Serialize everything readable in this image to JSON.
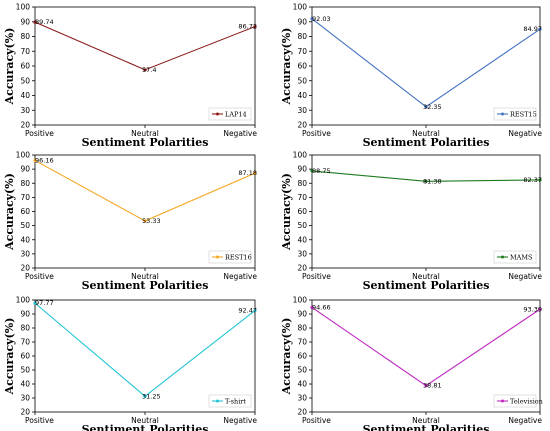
{
  "chart_data": [
    {
      "type": "line",
      "categories": [
        "Positive",
        "Neutral",
        "Negative"
      ],
      "series": [
        {
          "name": "LAP14",
          "values": [
            89.74,
            57.4,
            86.72
          ],
          "labels": [
            "89.74",
            "57.4",
            "86.72"
          ],
          "color": "#8b1a1a"
        }
      ],
      "xlabel": "Sentiment Polarities",
      "ylabel": "Accuracy(%)",
      "ylim": [
        20,
        100
      ],
      "yticks": [
        "20",
        "30",
        "40",
        "50",
        "60",
        "70",
        "80",
        "90",
        "100"
      ],
      "legend_position": "lower-right",
      "grid": false
    },
    {
      "type": "line",
      "categories": [
        "Positive",
        "Neutral",
        "Negative"
      ],
      "series": [
        {
          "name": "REST15",
          "values": [
            92.03,
            32.35,
            84.97
          ],
          "labels": [
            "92.03",
            "32.35",
            "84.97"
          ],
          "color": "#4472c4"
        }
      ],
      "xlabel": "Sentiment Polarities",
      "ylabel": "Accuracy(%)",
      "ylim": [
        20,
        100
      ],
      "yticks": [
        "20",
        "30",
        "40",
        "50",
        "60",
        "70",
        "80",
        "90",
        "100"
      ],
      "legend_position": "lower-right",
      "grid": false
    },
    {
      "type": "line",
      "categories": [
        "Positive",
        "Neutral",
        "Negative"
      ],
      "series": [
        {
          "name": "REST16",
          "values": [
            96.16,
            53.33,
            87.18
          ],
          "labels": [
            "96.16",
            "53.33",
            "87.18"
          ],
          "color": "#f5a623"
        }
      ],
      "xlabel": "Sentiment Polarities",
      "ylabel": "Accuracy(%)",
      "ylim": [
        20,
        100
      ],
      "yticks": [
        "20",
        "30",
        "40",
        "50",
        "60",
        "70",
        "80",
        "90",
        "100"
      ],
      "legend_position": "lower-right",
      "grid": false
    },
    {
      "type": "line",
      "categories": [
        "Positive",
        "Neutral",
        "Negative"
      ],
      "series": [
        {
          "name": "MAMS",
          "values": [
            88.75,
            81.38,
            82.37
          ],
          "labels": [
            "88.75",
            "81.38",
            "82.37"
          ],
          "color": "#1e7b1e"
        }
      ],
      "xlabel": "Sentiment Polarities",
      "ylabel": "Accuracy(%)",
      "ylim": [
        20,
        100
      ],
      "yticks": [
        "20",
        "30",
        "40",
        "50",
        "60",
        "70",
        "80",
        "90",
        "100"
      ],
      "legend_position": "lower-right",
      "grid": false
    },
    {
      "type": "line",
      "categories": [
        "Positive",
        "Neutral",
        "Negative"
      ],
      "series": [
        {
          "name": "T-shirt",
          "values": [
            97.77,
            31.25,
            92.47
          ],
          "labels": [
            "97.77",
            "31.25",
            "92.47"
          ],
          "color": "#22c4d4"
        }
      ],
      "xlabel": "Sentiment Polarities",
      "ylabel": "Accuracy(%)",
      "ylim": [
        20,
        100
      ],
      "yticks": [
        "20",
        "30",
        "40",
        "50",
        "60",
        "70",
        "80",
        "90",
        "100"
      ],
      "legend_position": "lower-right",
      "grid": false
    },
    {
      "type": "line",
      "categories": [
        "Positive",
        "Neutral",
        "Negative"
      ],
      "series": [
        {
          "name": "Television",
          "values": [
            94.66,
            38.81,
            93.39
          ],
          "labels": [
            "94.66",
            "38.81",
            "93.39"
          ],
          "color": "#c026c0"
        }
      ],
      "xlabel": "Sentiment Polarities",
      "ylabel": "Accuracy(%)",
      "ylim": [
        20,
        100
      ],
      "yticks": [
        "20",
        "30",
        "40",
        "50",
        "60",
        "70",
        "80",
        "90",
        "100"
      ],
      "legend_position": "lower-right",
      "grid": false
    }
  ]
}
